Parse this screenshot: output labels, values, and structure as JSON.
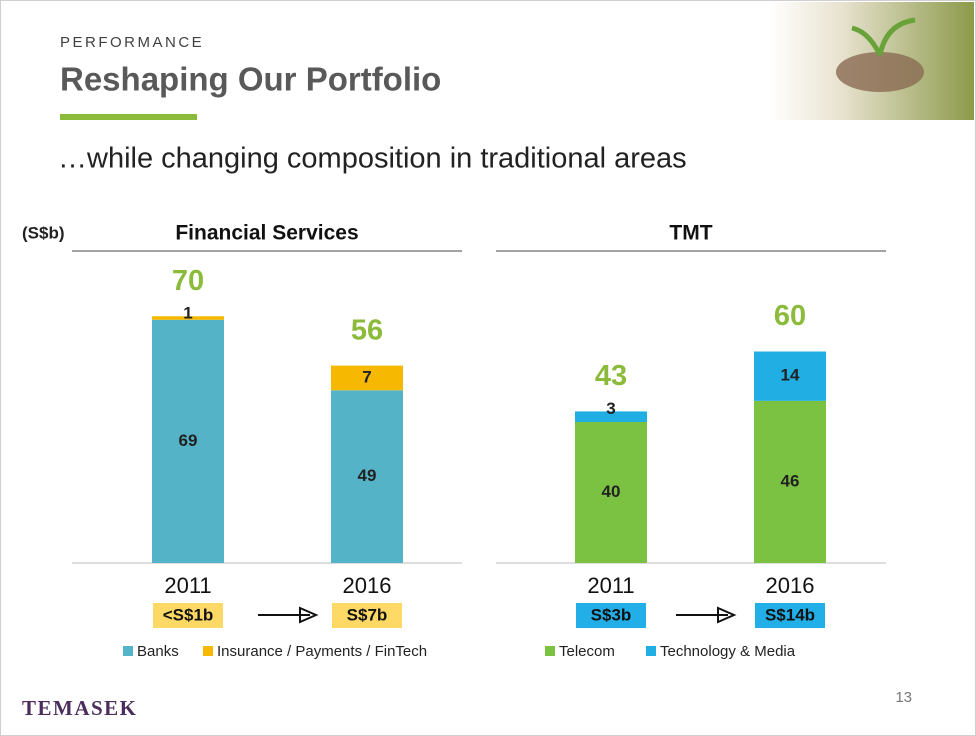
{
  "header": {
    "kicker": "PERFORMANCE",
    "title": "Reshaping Our Portfolio",
    "subtitle": "…while changing composition in traditional areas",
    "unit": "(S$b)"
  },
  "chart_data": [
    {
      "type": "bar",
      "stacked": true,
      "title": "Financial Services",
      "categories": [
        "2011",
        "2016"
      ],
      "series": [
        {
          "name": "Banks",
          "color": "#55b3c8",
          "values": [
            69,
            49
          ]
        },
        {
          "name": "Insurance / Payments / FinTech",
          "color": "#f6b800",
          "values": [
            1,
            7
          ]
        }
      ],
      "totals": [
        70,
        56
      ],
      "total_color": "#8cbb3c",
      "badges": [
        "<S$1b",
        "S$7b"
      ],
      "badge_color": "#ffd966",
      "ylim": [
        0,
        80
      ]
    },
    {
      "type": "bar",
      "stacked": true,
      "title": "TMT",
      "categories": [
        "2011",
        "2016"
      ],
      "series": [
        {
          "name": "Telecom",
          "color": "#7cc242",
          "values": [
            40,
            46
          ]
        },
        {
          "name": "Technology & Media",
          "color": "#20aee3",
          "values": [
            3,
            14
          ]
        }
      ],
      "totals": [
        43,
        60
      ],
      "total_color": "#8cbb3c",
      "badges": [
        "S$3b",
        "S$14b"
      ],
      "badge_color": "#22aee6",
      "ylim": [
        0,
        80
      ]
    }
  ],
  "footer": {
    "logo": "TEMASEK",
    "page": "13"
  }
}
